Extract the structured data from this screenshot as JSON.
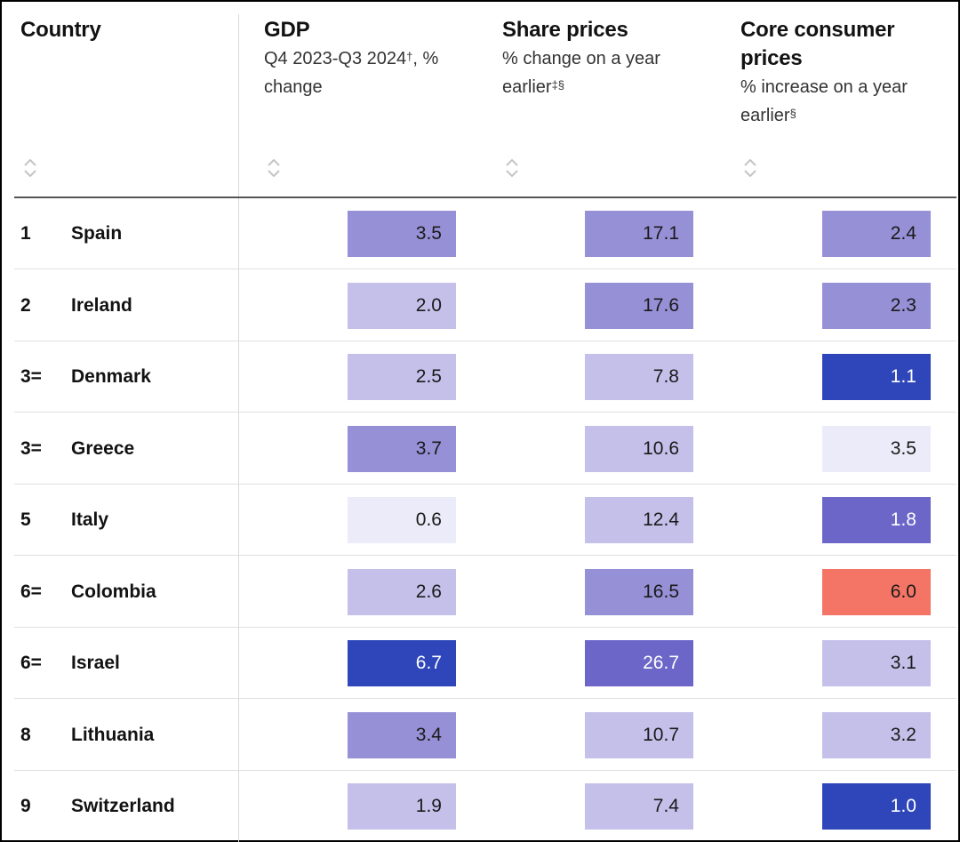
{
  "chart_data": {
    "type": "table",
    "columns": [
      {
        "key": "country",
        "title": "Country",
        "subtitle": "",
        "sup": ""
      },
      {
        "key": "gdp",
        "title": "GDP",
        "subtitle_pre": "Q4 2023-Q3 2024",
        "sup": "†",
        "subtitle_post": ", % change"
      },
      {
        "key": "share_prices",
        "title": "Share prices",
        "subtitle_pre": "% change on a year earlier",
        "sup": "‡§",
        "subtitle_post": ""
      },
      {
        "key": "core_cpi",
        "title": "Core consumer prices",
        "subtitle_pre": "% increase on a year earlier",
        "sup": "§",
        "subtitle_post": ""
      }
    ],
    "rows": [
      {
        "rank": "1",
        "country": "Spain",
        "gdp": "3.5",
        "share_prices": "17.1",
        "core_cpi": "2.4"
      },
      {
        "rank": "2",
        "country": "Ireland",
        "gdp": "2.0",
        "share_prices": "17.6",
        "core_cpi": "2.3"
      },
      {
        "rank": "3=",
        "country": "Denmark",
        "gdp": "2.5",
        "share_prices": "7.8",
        "core_cpi": "1.1"
      },
      {
        "rank": "3=",
        "country": "Greece",
        "gdp": "3.7",
        "share_prices": "10.6",
        "core_cpi": "3.5"
      },
      {
        "rank": "5",
        "country": "Italy",
        "gdp": "0.6",
        "share_prices": "12.4",
        "core_cpi": "1.8"
      },
      {
        "rank": "6=",
        "country": "Colombia",
        "gdp": "2.6",
        "share_prices": "16.5",
        "core_cpi": "6.0"
      },
      {
        "rank": "6=",
        "country": "Israel",
        "gdp": "6.7",
        "share_prices": "26.7",
        "core_cpi": "3.1"
      },
      {
        "rank": "8",
        "country": "Lithuania",
        "gdp": "3.4",
        "share_prices": "10.7",
        "core_cpi": "3.2"
      },
      {
        "rank": "9",
        "country": "Switzerland",
        "gdp": "1.9",
        "share_prices": "7.4",
        "core_cpi": "1.0"
      }
    ],
    "cell_colors": {
      "gdp": [
        "#9690d6",
        "#c4c0ea",
        "#c4c0ea",
        "#9690d6",
        "#ecebf9",
        "#c4c0ea",
        "#2e46b9",
        "#9690d6",
        "#c4c0ea"
      ],
      "share_prices": [
        "#9690d6",
        "#9690d6",
        "#c4c0ea",
        "#c4c0ea",
        "#c4c0ea",
        "#9690d6",
        "#6b66c8",
        "#c4c0ea",
        "#c4c0ea"
      ],
      "core_cpi": [
        "#9690d6",
        "#9690d6",
        "#2e46b9",
        "#ecebf9",
        "#6b66c8",
        "#f47566",
        "#c4c0ea",
        "#c4c0ea",
        "#2e46b9"
      ]
    },
    "text_colors": {
      "dark_text": "#1a1a1a",
      "light_text": "#ffffff"
    }
  }
}
